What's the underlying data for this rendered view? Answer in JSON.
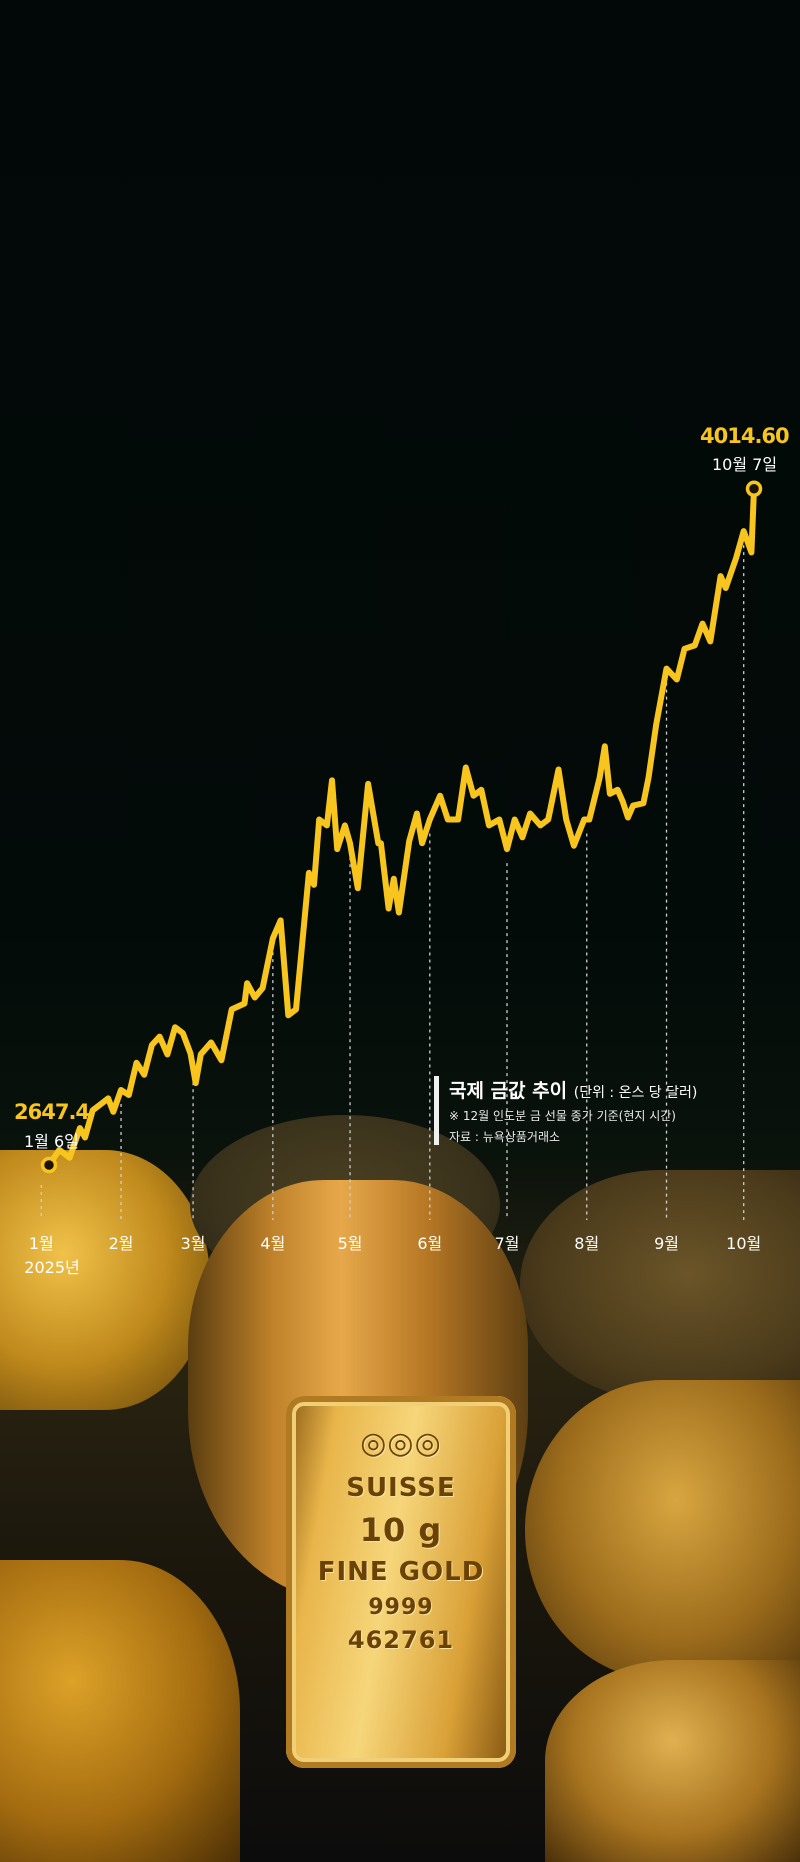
{
  "chart_data": {
    "type": "line",
    "title": "국제 금값 추이",
    "unit": "(단위 : 온스 당 달러)",
    "note": "※ 12월 인도분 금 선물 종가 기준(현지 시간)",
    "source": "자료 : 뉴욕상품거래소",
    "x_tick_labels": [
      "1월",
      "2월",
      "3월",
      "4월",
      "5월",
      "6월",
      "7월",
      "8월",
      "9월",
      "10월"
    ],
    "x_year_label": "2025년",
    "line_color": "#f7c51e",
    "grid": "dotted vertical at month ticks",
    "start": {
      "value": "2647.4",
      "date": "1월 6일"
    },
    "end": {
      "value": "4014.60",
      "date": "10월 7일"
    },
    "points": [
      [
        "2025-01-06",
        2647.4
      ],
      [
        "2025-01-10",
        2678
      ],
      [
        "2025-01-14",
        2662
      ],
      [
        "2025-01-18",
        2722
      ],
      [
        "2025-01-20",
        2703
      ],
      [
        "2025-01-23",
        2758
      ],
      [
        "2025-01-26",
        2770
      ],
      [
        "2025-01-29",
        2782
      ],
      [
        "2025-01-31",
        2755
      ],
      [
        "2025-02-03",
        2799
      ],
      [
        "2025-02-06",
        2789
      ],
      [
        "2025-02-09",
        2854
      ],
      [
        "2025-02-12",
        2830
      ],
      [
        "2025-02-15",
        2890
      ],
      [
        "2025-02-18",
        2907
      ],
      [
        "2025-02-21",
        2871
      ],
      [
        "2025-02-24",
        2926
      ],
      [
        "2025-02-27",
        2914
      ],
      [
        "2025-03-02",
        2873
      ],
      [
        "2025-03-04",
        2813
      ],
      [
        "2025-03-06",
        2871
      ],
      [
        "2025-03-10",
        2895
      ],
      [
        "2025-03-14",
        2859
      ],
      [
        "2025-03-18",
        2962
      ],
      [
        "2025-03-23",
        2974
      ],
      [
        "2025-03-24",
        3015
      ],
      [
        "2025-03-27",
        2986
      ],
      [
        "2025-03-30",
        3005
      ],
      [
        "2025-04-03",
        3106
      ],
      [
        "2025-04-06",
        3142
      ],
      [
        "2025-04-09",
        2950
      ],
      [
        "2025-04-12",
        2962
      ],
      [
        "2025-04-17",
        3238
      ],
      [
        "2025-04-19",
        3214
      ],
      [
        "2025-04-21",
        3346
      ],
      [
        "2025-04-24",
        3334
      ],
      [
        "2025-04-26",
        3425
      ],
      [
        "2025-04-28",
        3286
      ],
      [
        "2025-05-01",
        3334
      ],
      [
        "2025-05-03",
        3298
      ],
      [
        "2025-05-06",
        3207
      ],
      [
        "2025-05-10",
        3418
      ],
      [
        "2025-05-14",
        3298
      ],
      [
        "2025-05-15",
        3298
      ],
      [
        "2025-05-18",
        3166
      ],
      [
        "2025-05-20",
        3226
      ],
      [
        "2025-05-22",
        3158
      ],
      [
        "2025-05-26",
        3302
      ],
      [
        "2025-05-29",
        3358
      ],
      [
        "2025-05-31",
        3298
      ],
      [
        "2025-06-03",
        3346
      ],
      [
        "2025-06-07",
        3394
      ],
      [
        "2025-06-10",
        3346
      ],
      [
        "2025-06-14",
        3346
      ],
      [
        "2025-06-17",
        3451
      ],
      [
        "2025-06-20",
        3394
      ],
      [
        "2025-06-23",
        3406
      ],
      [
        "2025-06-26",
        3334
      ],
      [
        "2025-06-30",
        3346
      ],
      [
        "2025-07-03",
        3286
      ],
      [
        "2025-07-06",
        3346
      ],
      [
        "2025-07-09",
        3310
      ],
      [
        "2025-07-12",
        3358
      ],
      [
        "2025-07-16",
        3334
      ],
      [
        "2025-07-19",
        3346
      ],
      [
        "2025-07-23",
        3447
      ],
      [
        "2025-07-26",
        3346
      ],
      [
        "2025-07-29",
        3293
      ],
      [
        "2025-08-02",
        3346
      ],
      [
        "2025-08-04",
        3346
      ],
      [
        "2025-08-08",
        3430
      ],
      [
        "2025-08-10",
        3494
      ],
      [
        "2025-08-12",
        3398
      ],
      [
        "2025-08-15",
        3406
      ],
      [
        "2025-08-17",
        3382
      ],
      [
        "2025-08-19",
        3350
      ],
      [
        "2025-08-21",
        3374
      ],
      [
        "2025-08-25",
        3379
      ],
      [
        "2025-08-27",
        3430
      ],
      [
        "2025-08-30",
        3538
      ],
      [
        "2025-09-03",
        3651
      ],
      [
        "2025-09-07",
        3629
      ],
      [
        "2025-09-10",
        3691
      ],
      [
        "2025-09-14",
        3698
      ],
      [
        "2025-09-17",
        3742
      ],
      [
        "2025-09-20",
        3706
      ],
      [
        "2025-09-24",
        3838
      ],
      [
        "2025-09-26",
        3814
      ],
      [
        "2025-09-30",
        3874
      ],
      [
        "2025-10-03",
        3929
      ],
      [
        "2025-10-06",
        3886
      ],
      [
        "2025-10-07",
        4014.6
      ]
    ]
  },
  "photo": {
    "bar_lines": [
      "SUISSE",
      "10 g",
      "FINE GOLD",
      "9999",
      "462761"
    ]
  }
}
